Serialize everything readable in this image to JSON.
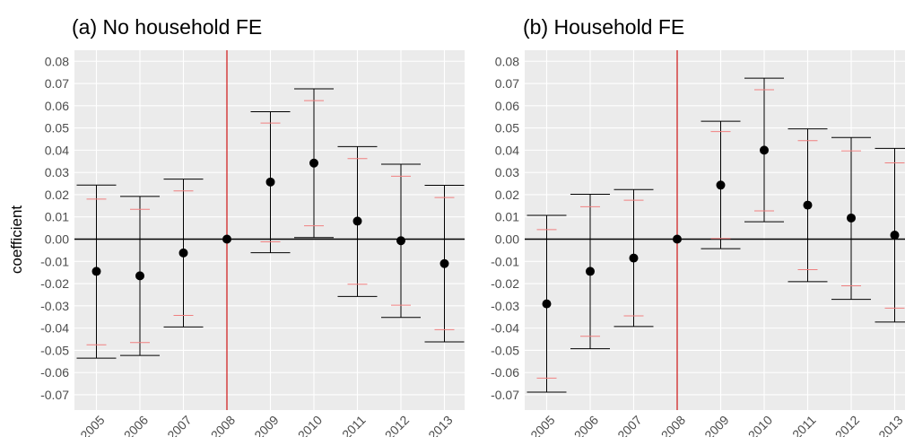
{
  "chart_data": {
    "type": "errorbar",
    "ylabel": "coefficient",
    "y_ticks": [
      "0.08",
      "0.07",
      "0.06",
      "0.05",
      "0.04",
      "0.03",
      "0.02",
      "0.01",
      "0.00",
      "-0.01",
      "-0.02",
      "-0.03",
      "-0.04",
      "-0.05",
      "-0.06",
      "-0.07"
    ],
    "ylim": [
      -0.078,
      0.085
    ],
    "categories": [
      "2005",
      "2006",
      "2007",
      "2008",
      "2009",
      "2010",
      "2011",
      "2012",
      "2013"
    ],
    "reference_year": "2008",
    "colors": {
      "panel_bg": "#ebebeb",
      "grid": "#ffffff",
      "vline": "#cc0000",
      "inner_ci": "#f08080",
      "outer_ci": "#000000",
      "point": "#000000",
      "zero_line": "#000000"
    },
    "panels": [
      {
        "title": "(a) No household FE",
        "estimate": [
          -0.0145,
          -0.0165,
          -0.0062,
          0.0,
          0.0257,
          0.0342,
          0.0081,
          -0.0007,
          -0.011
        ],
        "ci_outer_low": [
          -0.0535,
          -0.0523,
          -0.0395,
          0.0,
          -0.0061,
          0.0007,
          -0.0258,
          -0.0352,
          -0.0462
        ],
        "ci_outer_high": [
          0.0243,
          0.0192,
          0.027,
          0.0,
          0.0573,
          0.0676,
          0.0416,
          0.0337,
          0.0242
        ],
        "ci_inner_low": [
          -0.0475,
          -0.0465,
          -0.0343,
          0.0,
          -0.0012,
          0.006,
          -0.0203,
          -0.0297,
          -0.0407
        ],
        "ci_inner_high": [
          0.018,
          0.0134,
          0.0217,
          0.0,
          0.0522,
          0.0623,
          0.0362,
          0.0283,
          0.0187
        ]
      },
      {
        "title": "(b) Household FE",
        "estimate": [
          -0.0291,
          -0.0145,
          -0.0085,
          0.0,
          0.0243,
          0.04,
          0.0153,
          0.0095,
          0.0018
        ],
        "ci_outer_low": [
          -0.0688,
          -0.0493,
          -0.0393,
          0.0,
          -0.0043,
          0.0078,
          -0.0191,
          -0.0271,
          -0.0373
        ],
        "ci_outer_high": [
          0.0107,
          0.0202,
          0.0223,
          0.0,
          0.053,
          0.0724,
          0.0496,
          0.0457,
          0.0408
        ],
        "ci_inner_low": [
          -0.0625,
          -0.0437,
          -0.0345,
          0.0,
          0.0003,
          0.0127,
          -0.0137,
          -0.021,
          -0.031
        ],
        "ci_inner_high": [
          0.0043,
          0.0146,
          0.0175,
          0.0,
          0.0484,
          0.0672,
          0.0443,
          0.0397,
          0.0343
        ]
      }
    ]
  }
}
